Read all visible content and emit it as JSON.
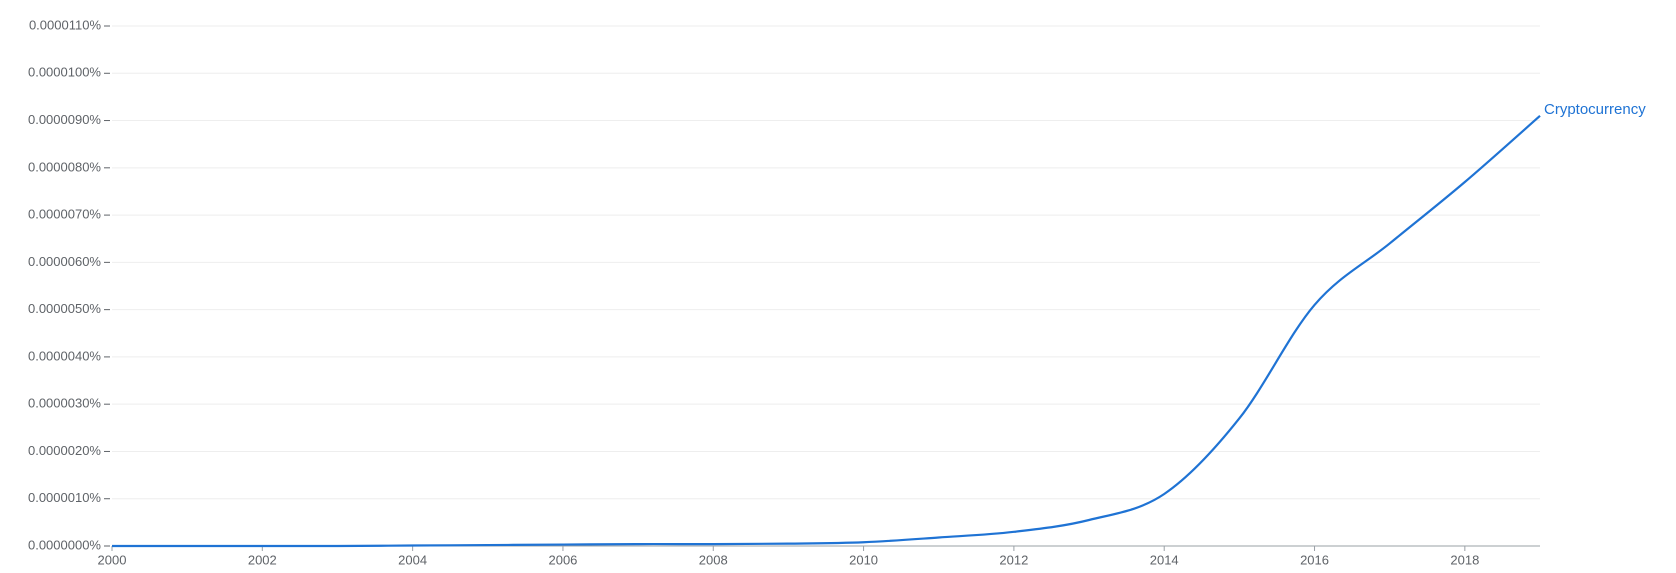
{
  "chart_data": {
    "type": "line",
    "x": [
      2000,
      2001,
      2002,
      2003,
      2004,
      2005,
      2006,
      2007,
      2008,
      2009,
      2010,
      2011,
      2012,
      2013,
      2014,
      2015,
      2016,
      2017,
      2018,
      2019
    ],
    "series": [
      {
        "name": "Cryptocurrency",
        "color": "#1f73d4",
        "values": [
          0,
          0,
          0,
          0,
          1e-08,
          2e-08,
          3e-08,
          4e-08,
          4e-08,
          5e-08,
          8e-08,
          1.8e-07,
          3e-07,
          5.5e-07,
          1.1e-06,
          2.7e-06,
          5.1e-06,
          6.4e-06,
          7.7e-06,
          9.1e-06
        ]
      }
    ],
    "xlim": [
      2000,
      2019
    ],
    "xticks": [
      2000,
      2002,
      2004,
      2006,
      2008,
      2010,
      2012,
      2014,
      2016,
      2018
    ],
    "ylim": [
      0,
      1.1e-05
    ],
    "yticks": [
      {
        "value": 0,
        "label": "0.0000000%"
      },
      {
        "value": 1e-06,
        "label": "0.0000010%"
      },
      {
        "value": 2e-06,
        "label": "0.0000020%"
      },
      {
        "value": 3e-06,
        "label": "0.0000030%"
      },
      {
        "value": 4e-06,
        "label": "0.0000040%"
      },
      {
        "value": 5e-06,
        "label": "0.0000050%"
      },
      {
        "value": 6e-06,
        "label": "0.0000060%"
      },
      {
        "value": 7e-06,
        "label": "0.0000070%"
      },
      {
        "value": 8e-06,
        "label": "0.0000080%"
      },
      {
        "value": 9e-06,
        "label": "0.0000090%"
      },
      {
        "value": 1e-05,
        "label": "0.0000100%"
      },
      {
        "value": 1.1e-05,
        "label": "0.0000110%"
      }
    ],
    "grid": true
  }
}
